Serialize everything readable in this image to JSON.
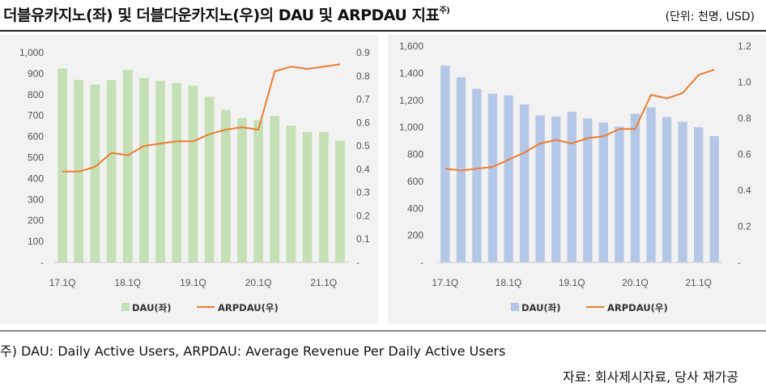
{
  "title": "더블유카지노(좌) 및 더블다운카지노(우)의 DAU 및 ARPDAU 지표",
  "title_sup": "주)",
  "unit": "(단위: 천명, USD)",
  "note": "주) DAU: Daily Active Users, ARPDAU: Average Revenue Per Daily Active Users",
  "source": "자료: 회사제시자료, 당사 재가공",
  "colors": {
    "left_bar": "#c4e0b4",
    "right_bar": "#b4c7e7",
    "line": "#ed7d31",
    "panel_bg": "#f2f2f2"
  },
  "chart_data": [
    {
      "type": "bar",
      "name": "더블유카지노",
      "categories": [
        "17.1Q",
        "17.2Q",
        "17.3Q",
        "17.4Q",
        "18.1Q",
        "18.2Q",
        "18.3Q",
        "18.4Q",
        "19.1Q",
        "19.2Q",
        "19.3Q",
        "19.4Q",
        "20.1Q",
        "20.2Q",
        "20.3Q",
        "20.4Q",
        "21.1Q",
        "21.2Q"
      ],
      "x_tick_labels": [
        "17.1Q",
        "18.1Q",
        "19.1Q",
        "20.1Q",
        "21.1Q"
      ],
      "series": [
        {
          "name": "DAU(좌)",
          "kind": "bar",
          "axis": "left",
          "values": [
            925,
            870,
            848,
            870,
            918,
            880,
            866,
            855,
            843,
            790,
            728,
            688,
            678,
            698,
            652,
            622,
            622,
            580
          ]
        },
        {
          "name": "ARPDAU(우)",
          "kind": "line",
          "axis": "right",
          "values": [
            0.39,
            0.39,
            0.41,
            0.47,
            0.46,
            0.5,
            0.51,
            0.52,
            0.52,
            0.55,
            0.57,
            0.58,
            0.57,
            0.82,
            0.84,
            0.83,
            0.84,
            0.85
          ]
        }
      ],
      "y_left": {
        "range": [
          0,
          1000
        ],
        "ticks": [
          "-",
          "100",
          "200",
          "300",
          "400",
          "500",
          "600",
          "700",
          "800",
          "900",
          "1,000"
        ]
      },
      "y_right": {
        "range": [
          0,
          0.9
        ],
        "ticks": [
          "-",
          "0.1",
          "0.2",
          "0.3",
          "0.4",
          "0.5",
          "0.6",
          "0.7",
          "0.8",
          "0.9"
        ]
      },
      "legend": [
        {
          "label": "DAU(좌)",
          "kind": "bar"
        },
        {
          "label": "ARPDAU(우)",
          "kind": "line"
        }
      ],
      "legend_position": "bottom",
      "grid": false
    },
    {
      "type": "bar",
      "name": "더블다운카지노",
      "categories": [
        "17.1Q",
        "17.2Q",
        "17.3Q",
        "17.4Q",
        "18.1Q",
        "18.2Q",
        "18.3Q",
        "18.4Q",
        "19.1Q",
        "19.2Q",
        "19.3Q",
        "19.4Q",
        "20.1Q",
        "20.2Q",
        "20.3Q",
        "20.4Q",
        "21.1Q",
        "21.2Q"
      ],
      "x_tick_labels": [
        "17.1Q",
        "18.1Q",
        "19.1Q",
        "20.1Q",
        "21.1Q"
      ],
      "series": [
        {
          "name": "DAU(좌)",
          "kind": "bar",
          "axis": "left",
          "values": [
            1455,
            1370,
            1285,
            1248,
            1235,
            1170,
            1088,
            1080,
            1115,
            1065,
            1035,
            1005,
            1100,
            1148,
            1075,
            1040,
            1000,
            935
          ]
        },
        {
          "name": "ARPDAU(우)",
          "kind": "line",
          "axis": "right",
          "values": [
            0.52,
            0.51,
            0.52,
            0.53,
            0.57,
            0.61,
            0.66,
            0.68,
            0.66,
            0.69,
            0.7,
            0.74,
            0.74,
            0.93,
            0.91,
            0.94,
            1.04,
            1.07
          ]
        }
      ],
      "y_left": {
        "range": [
          0,
          1600
        ],
        "ticks": [
          "-",
          "200",
          "400",
          "600",
          "800",
          "1,000",
          "1,200",
          "1,400",
          "1,600"
        ]
      },
      "y_right": {
        "range": [
          0,
          1.2
        ],
        "ticks": [
          "-",
          "0.2",
          "0.4",
          "0.6",
          "0.8",
          "1.0",
          "1.2"
        ]
      },
      "legend": [
        {
          "label": "DAU(좌)",
          "kind": "bar"
        },
        {
          "label": "ARPDAU(우)",
          "kind": "line"
        }
      ],
      "legend_position": "bottom",
      "grid": false
    }
  ]
}
